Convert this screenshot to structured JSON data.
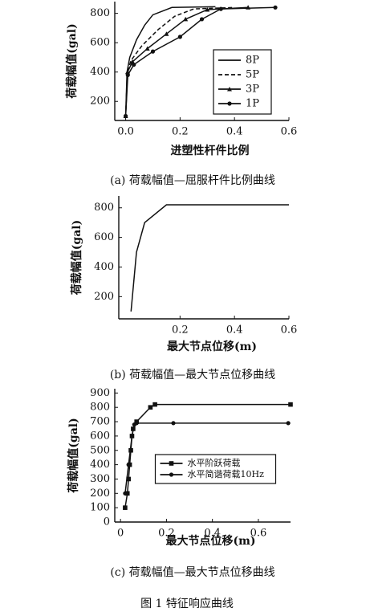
{
  "chart_data": [
    {
      "type": "line",
      "x_label": "进塑性杆件比例",
      "y_label": "荷载幅值(gal)",
      "caption": "(a) 荷载幅值—屈服杆件比例曲线",
      "xlim": [
        -0.04,
        0.6
      ],
      "ylim": [
        70,
        880
      ],
      "xticks": [
        {
          "value": 0,
          "label": "0.0"
        },
        0.2,
        0.4,
        0.6
      ],
      "yticks": [
        200,
        400,
        600,
        800
      ],
      "legend": "center right",
      "series": [
        {
          "name": "8P",
          "color": "#111111",
          "marker": "none",
          "dash": "none",
          "x": [
            0,
            0.005,
            0.015,
            0.04,
            0.07,
            0.1,
            0.17,
            0.33
          ],
          "values": [
            100,
            400,
            500,
            620,
            720,
            790,
            840,
            845
          ]
        },
        {
          "name": "5P",
          "color": "#111111",
          "marker": "none",
          "dash": "5,3",
          "x": [
            0,
            0.006,
            0.02,
            0.06,
            0.12,
            0.18,
            0.25,
            0.4
          ],
          "values": [
            100,
            400,
            480,
            580,
            690,
            780,
            830,
            840
          ]
        },
        {
          "name": "3P",
          "color": "#111111",
          "marker": "triangle",
          "dash": "none",
          "x": [
            0,
            0.007,
            0.025,
            0.08,
            0.15,
            0.22,
            0.3,
            0.45
          ],
          "values": [
            100,
            400,
            470,
            560,
            660,
            760,
            825,
            840
          ]
        },
        {
          "name": "1P",
          "color": "#111111",
          "marker": "circle",
          "dash": "none",
          "x": [
            0,
            0.008,
            0.03,
            0.1,
            0.2,
            0.28,
            0.35,
            0.55
          ],
          "values": [
            100,
            380,
            450,
            540,
            640,
            760,
            830,
            840
          ]
        }
      ]
    },
    {
      "type": "line",
      "x_label": "最大节点位移(m)",
      "y_label": "荷载幅值(gal)",
      "caption": "(b) 荷载幅值—最大节点位移曲线",
      "xlim": [
        -0.025,
        0.6
      ],
      "ylim": [
        50,
        880
      ],
      "xticks": [
        0.2,
        0.4,
        0.6
      ],
      "yticks": [
        200,
        400,
        600,
        800
      ],
      "series": [
        {
          "name": null,
          "color": "#111111",
          "marker": "none",
          "dash": "none",
          "x": [
            0.02,
            0.04,
            0.07,
            0.15,
            0.6
          ],
          "values": [
            100,
            500,
            700,
            820,
            820
          ]
        }
      ]
    },
    {
      "type": "line",
      "x_label": "最大节点位移(m)",
      "y_label": "荷载幅值(gal)",
      "caption": "(c) 荷载幅值—最大节点位移曲线",
      "xlim": [
        -0.025,
        0.74
      ],
      "ylim": [
        0,
        930
      ],
      "xticks": [
        0,
        0.2,
        0.4,
        0.6
      ],
      "yticks": [
        0,
        100,
        200,
        300,
        400,
        500,
        600,
        700,
        800,
        900
      ],
      "legend": "lower center",
      "series": [
        {
          "name": "水平阶跃荷载",
          "color": "#111111",
          "marker": "square",
          "dash": "none",
          "x": [
            0.02,
            0.03,
            0.035,
            0.04,
            0.045,
            0.05,
            0.055,
            0.07,
            0.13,
            0.15,
            0.74
          ],
          "values": [
            100,
            200,
            300,
            400,
            500,
            600,
            650,
            700,
            800,
            820,
            820
          ]
        },
        {
          "name": "水平简谐荷载10Hz",
          "color": "#111111",
          "marker": "circle",
          "dash": "none",
          "x": [
            0.02,
            0.035,
            0.05,
            0.06,
            0.07,
            0.23,
            0.73
          ],
          "values": [
            200,
            400,
            600,
            680,
            690,
            690,
            690
          ]
        }
      ]
    }
  ],
  "figure_caption": "图 1  特征响应曲线"
}
